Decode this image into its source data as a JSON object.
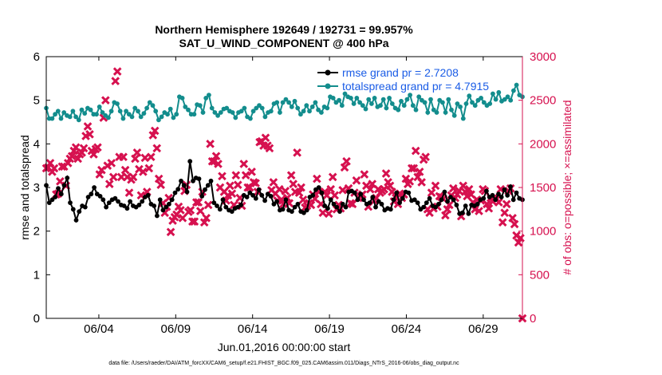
{
  "chart_data": {
    "type": "line",
    "title": "Northern Hemisphere 192649 / 192731 = 99.957%",
    "subtitle": "SAT_U_WIND_COMPONENT @ 400 hPa",
    "xlabel": "Jun.01,2016 00:00:00 start",
    "ylabel_left": "rmse and totalspread",
    "ylabel_right": "# of obs: o=possible; ×=assimilated",
    "footer": "data file: /Users/raeder/DAI/ATM_forcXX/CAM6_setup/f.e21.FHIST_BGC.f09_025.CAM6assim.011/Diags_NTrS_2016-06/obs_diag_output.nc",
    "xlim": [
      0.58,
      31.55
    ],
    "ylim_left": [
      0,
      6
    ],
    "ylim_right": [
      0,
      3000
    ],
    "x_ticks": [
      {
        "x": 4,
        "label": "06/04"
      },
      {
        "x": 9,
        "label": "06/09"
      },
      {
        "x": 14,
        "label": "06/14"
      },
      {
        "x": 19,
        "label": "06/19"
      },
      {
        "x": 24,
        "label": "06/24"
      },
      {
        "x": 29,
        "label": "06/29"
      }
    ],
    "y_ticks_left": [
      0,
      1,
      2,
      3,
      4,
      5,
      6
    ],
    "y_ticks_right": [
      0,
      500,
      1000,
      1500,
      2000,
      2500,
      3000
    ],
    "colors": {
      "rmse": "#000000",
      "totalspread": "#138d8d",
      "obs": "#d6114f",
      "legend_text": "#1a5ce6"
    },
    "series": [
      {
        "name": "rmse grand pr = 2.7208",
        "axis": "left",
        "values": [
          3.05,
          2.65,
          2.72,
          2.78,
          2.98,
          2.85,
          3.05,
          3.22,
          2.65,
          2.5,
          2.25,
          2.45,
          2.58,
          2.55,
          2.78,
          2.85,
          3.0,
          2.85,
          2.8,
          2.72,
          2.55,
          2.65,
          2.72,
          2.75,
          2.68,
          2.6,
          2.58,
          2.52,
          2.68,
          2.58,
          2.55,
          2.6,
          2.68,
          2.78,
          2.82,
          2.62,
          2.58,
          2.35,
          2.72,
          2.48,
          2.55,
          2.62,
          2.72,
          2.88,
          2.96,
          3.15,
          3.05,
          2.9,
          3.6,
          3.15,
          3.22,
          3.2,
          2.8,
          2.95,
          3.05,
          3.15,
          2.65,
          2.58,
          2.5,
          2.72,
          2.55,
          2.48,
          2.45,
          2.52,
          2.55,
          2.6,
          2.82,
          2.78,
          2.88,
          2.82,
          2.75,
          2.95,
          2.82,
          2.7,
          2.85,
          2.8,
          2.62,
          2.68,
          2.48,
          2.5,
          2.72,
          2.48,
          2.45,
          2.55,
          2.62,
          2.45,
          2.42,
          2.48,
          2.78,
          2.82,
          2.95,
          3.0,
          2.88,
          2.58,
          2.52,
          2.72,
          2.62,
          2.55,
          2.45,
          2.62,
          2.55,
          2.9,
          2.92,
          2.88,
          2.72,
          2.85,
          2.72,
          2.62,
          2.65,
          2.78,
          2.55,
          2.68,
          2.62,
          2.48,
          2.52,
          2.5,
          2.72,
          2.88,
          2.65,
          2.75,
          2.9,
          2.88,
          2.7,
          2.72,
          2.65,
          2.5,
          2.55,
          2.65,
          2.75,
          2.58,
          2.55,
          2.62,
          2.72,
          2.9,
          2.68,
          2.78,
          2.72,
          2.6,
          2.4,
          2.42,
          2.58,
          2.4,
          2.6,
          2.58,
          2.62,
          2.72,
          2.75,
          2.92,
          2.78,
          2.82,
          2.72,
          2.85,
          2.78,
          2.95,
          2.82,
          3.02,
          2.72,
          2.88,
          2.75,
          2.72
        ]
      },
      {
        "name": "totalspread grand pr = 4.7915",
        "axis": "left",
        "values": [
          4.82,
          4.58,
          4.58,
          4.68,
          4.75,
          4.58,
          4.72,
          4.65,
          4.62,
          4.75,
          4.62,
          4.55,
          4.78,
          4.7,
          4.82,
          4.78,
          4.68,
          4.68,
          4.85,
          4.72,
          4.65,
          4.6,
          4.75,
          4.95,
          4.92,
          4.75,
          4.58,
          4.75,
          4.68,
          4.62,
          4.82,
          4.75,
          4.62,
          4.7,
          4.82,
          4.95,
          4.88,
          4.75,
          4.55,
          4.62,
          4.72,
          4.68,
          4.8,
          4.6,
          4.68,
          5.08,
          5.05,
          4.85,
          4.78,
          4.68,
          4.68,
          4.9,
          4.88,
          4.72,
          5.05,
          5.12,
          4.82,
          4.72,
          4.65,
          4.72,
          4.8,
          4.82,
          4.75,
          4.72,
          4.6,
          4.72,
          4.75,
          4.82,
          4.62,
          4.58,
          4.75,
          4.82,
          4.88,
          4.82,
          4.62,
          4.72,
          4.75,
          4.92,
          4.95,
          4.72,
          4.95,
          5.02,
          4.95,
          4.85,
          4.98,
          4.82,
          4.68,
          4.75,
          4.88,
          4.75,
          4.85,
          4.95,
          4.78,
          4.72,
          4.85,
          4.82,
          5.08,
          5.05,
          4.95,
          5.0,
          4.88,
          5.15,
          5.08,
          5.05,
          4.92,
          5.05,
          4.95,
          4.88,
          4.8,
          5.02,
          4.92,
          5.05,
          4.85,
          4.88,
          5.02,
          4.82,
          5.05,
          4.92,
          4.82,
          4.78,
          4.98,
          4.88,
          5.02,
          5.12,
          4.88,
          4.78,
          5.08,
          5.0,
          4.95,
          4.72,
          5.02,
          4.78,
          4.72,
          5.0,
          4.95,
          4.72,
          5.02,
          4.78,
          4.65,
          4.92,
          4.85,
          4.58,
          4.92,
          5.1,
          4.95,
          4.88,
          5.0,
          5.05,
          4.95,
          4.88,
          4.92,
          5.15,
          5.02,
          5.18,
          4.98,
          5.02,
          5.08,
          5.0,
          5.22,
          5.35,
          5.12,
          5.08
        ]
      }
    ],
    "assimilated": {
      "name": "assimilated",
      "axis": "right",
      "values": [
        1720,
        1730,
        1780,
        1680,
        1720,
        1420,
        1430,
        1570,
        1740,
        1740,
        1520,
        1780,
        1830,
        1860,
        1920,
        1960,
        1830,
        1880,
        1900,
        1950,
        2090,
        2200,
        2110,
        1920,
        1880,
        1940,
        1960,
        1650,
        1700,
        2300,
        2500,
        1750,
        1540,
        1780,
        1620,
        2720,
        2830,
        1850,
        1620,
        1850,
        1700,
        1620,
        1440,
        1590,
        1620,
        1830,
        1900,
        1710,
        1410,
        1680,
        1840,
        1450,
        1720,
        1850,
        2100,
        2150,
        1950,
        1600,
        1530,
        1320,
        1210,
        1280,
        1380,
        990,
        1120,
        1160,
        1190,
        1280,
        1240,
        1150,
        1460,
        1530,
        1220,
        1240,
        1110,
        1110,
        1330,
        1330,
        1230,
        1450,
        1100,
        1150,
        1300,
        2000,
        1800,
        1800,
        1860,
        1770,
        1500,
        1630,
        1450,
        1350,
        1410,
        1520,
        1430,
        1300,
        1640,
        1530,
        1380,
        1290,
        1770,
        1640,
        1500,
        1500,
        1680,
        1560,
        1550,
        1450,
        2020,
        2030,
        1980,
        2070,
        1980,
        1950,
        1470,
        1560,
        1430,
        1350,
        1480,
        1360,
        1310,
        1460,
        1380,
        1320,
        1640,
        1540,
        1450,
        1900,
        1440,
        1500,
        1360,
        1270,
        1290,
        1320,
        1300,
        1420,
        1370,
        1600,
        1450,
        1310,
        1210,
        1450,
        1410,
        1200,
        1480,
        1620,
        1410,
        1250,
        1300,
        1260,
        1470,
        1730,
        1800,
        1490,
        1320,
        1310,
        1440,
        1580,
        1380,
        1400,
        1420,
        1650,
        1520,
        1280,
        1480,
        1540,
        1350,
        1380,
        1480,
        1440,
        1460,
        1480,
        1660,
        1560,
        1520,
        1450,
        1340,
        1380,
        1310,
        1430,
        1380,
        1420,
        1600,
        1540,
        1570,
        1720,
        1720,
        1920,
        1620,
        1680,
        1560,
        1820,
        1850,
        1250,
        1210,
        1440,
        1260,
        1520,
        1280,
        1400,
        1390,
        1370,
        1180,
        1250,
        1300,
        1410,
        1490,
        1380,
        1420,
        1460,
        1170,
        1520,
        1450,
        1400,
        1480,
        1420,
        1330,
        1250,
        1360,
        1230,
        1350,
        1480,
        1460,
        1310,
        1260,
        1380,
        1340,
        1390,
        1370,
        1330,
        1480,
        1100,
        1210,
        1310,
        1460,
        1490,
        1150,
        1080,
        950,
        870,
        920,
        0
      ]
    }
  }
}
